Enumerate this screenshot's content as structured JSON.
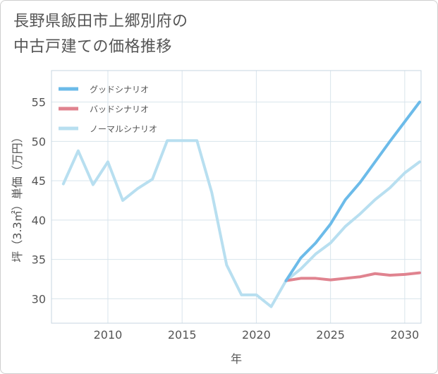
{
  "title_lines": [
    "長野県飯田市上郷別府の",
    "中古戸建ての価格推移"
  ],
  "chart_data": {
    "type": "line",
    "xlabel": "年",
    "ylabel": "坪（3.3㎡）単価（万円）",
    "xlim": [
      2006.2,
      2031.1
    ],
    "ylim": [
      26.9,
      59.0
    ],
    "xticks": [
      2010,
      2015,
      2020,
      2025,
      2030
    ],
    "yticks": [
      30,
      35,
      40,
      45,
      50,
      55
    ],
    "legend_position": "top-left",
    "series": [
      {
        "name": "グッドシナリオ",
        "color": "#6cbbe9",
        "x": [
          2022,
          2023,
          2024,
          2025,
          2026,
          2027,
          2028,
          2029,
          2030,
          2031
        ],
        "y": [
          32.3,
          35.2,
          37.1,
          39.5,
          42.6,
          44.8,
          47.4,
          50.0,
          52.5,
          55.0
        ]
      },
      {
        "name": "バッドシナリオ",
        "color": "#e0838f",
        "x": [
          2022,
          2023,
          2024,
          2025,
          2026,
          2027,
          2028,
          2029,
          2030,
          2031
        ],
        "y": [
          32.3,
          32.6,
          32.6,
          32.4,
          32.6,
          32.8,
          33.2,
          33.0,
          33.1,
          33.3
        ]
      },
      {
        "name": "ノーマルシナリオ",
        "color": "#b8dff0",
        "x": [
          2007,
          2008,
          2009,
          2010,
          2011,
          2012,
          2013,
          2014,
          2015,
          2016,
          2017,
          2018,
          2019,
          2020,
          2021,
          2022,
          2023,
          2024,
          2025,
          2026,
          2027,
          2028,
          2029,
          2030,
          2031
        ],
        "y": [
          44.6,
          48.8,
          44.5,
          47.4,
          42.5,
          44.0,
          45.2,
          50.1,
          50.1,
          50.1,
          43.5,
          34.3,
          30.5,
          30.5,
          29.0,
          32.3,
          33.8,
          35.7,
          37.1,
          39.2,
          40.8,
          42.6,
          44.1,
          46.0,
          47.4
        ]
      }
    ]
  }
}
